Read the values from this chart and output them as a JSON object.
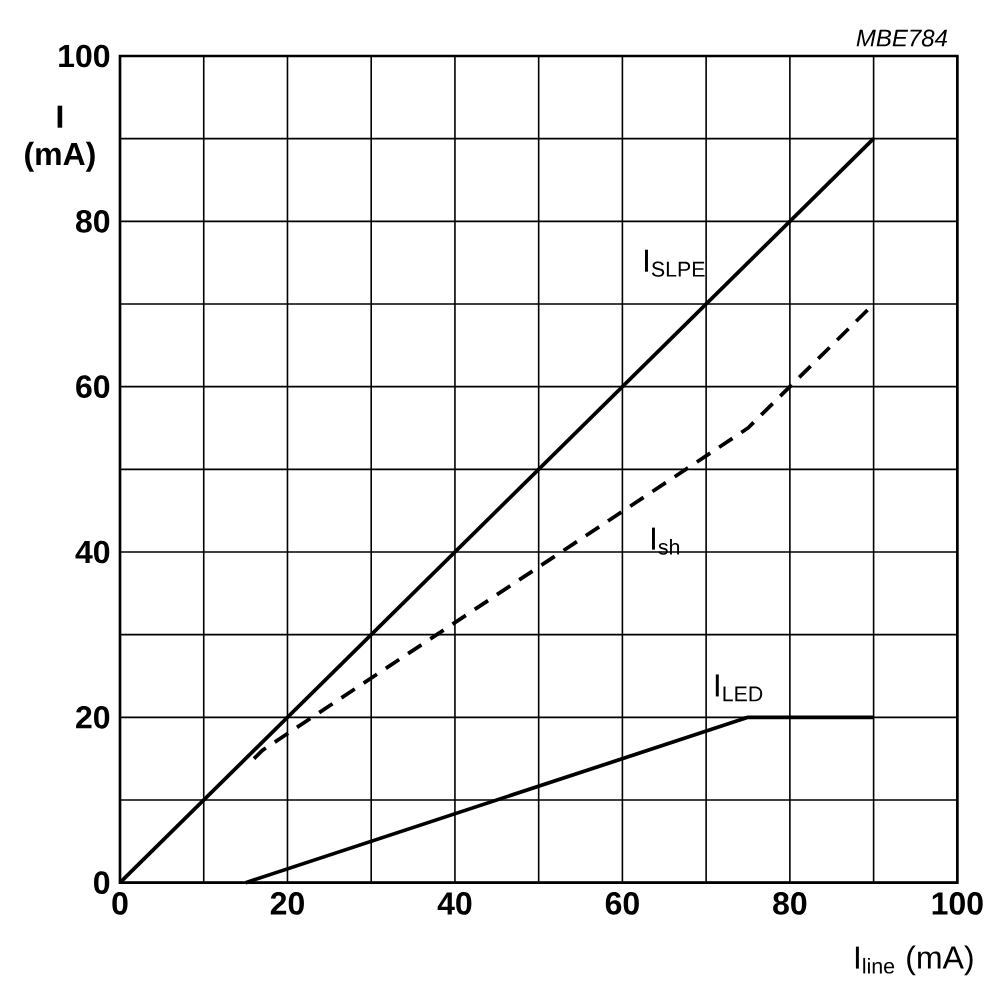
{
  "chart_data": {
    "type": "line",
    "xlabel": "I$_{line}$ (mA)",
    "ylabel": "I (mA)",
    "annotations": [
      "MBE784"
    ],
    "xlim": [
      0,
      100
    ],
    "ylim": [
      0,
      100
    ],
    "xticks": [
      0,
      {
        "value": 10,
        "label": null
      },
      20,
      {
        "value": 30,
        "label": null
      },
      40,
      {
        "value": 50,
        "label": null
      },
      60,
      {
        "value": 70,
        "label": null
      },
      80,
      {
        "value": 90,
        "label": null
      },
      100
    ],
    "yticks": [
      0,
      {
        "value": 10,
        "label": null
      },
      20,
      {
        "value": 30,
        "label": null
      },
      40,
      {
        "value": 50,
        "label": null
      },
      60,
      {
        "value": 70,
        "label": null
      },
      80,
      {
        "value": 90,
        "label": null
      },
      100
    ],
    "grid": true,
    "series": [
      {
        "name": "I$_{SLPE}$",
        "color": "#000000",
        "line_style": "solid",
        "x": [
          0,
          90
        ],
        "values": [
          0,
          90
        ]
      },
      {
        "name": "I$_{sh}$",
        "color": "#000000",
        "line_style": "dashed",
        "x": [
          16,
          17,
          75,
          90
        ],
        "values": [
          15,
          16,
          55,
          70
        ]
      },
      {
        "name": "I$_{LED}$",
        "color": "#000000",
        "line_style": "solid",
        "x": [
          15,
          75,
          90
        ],
        "values": [
          0,
          20,
          20
        ]
      }
    ]
  }
}
